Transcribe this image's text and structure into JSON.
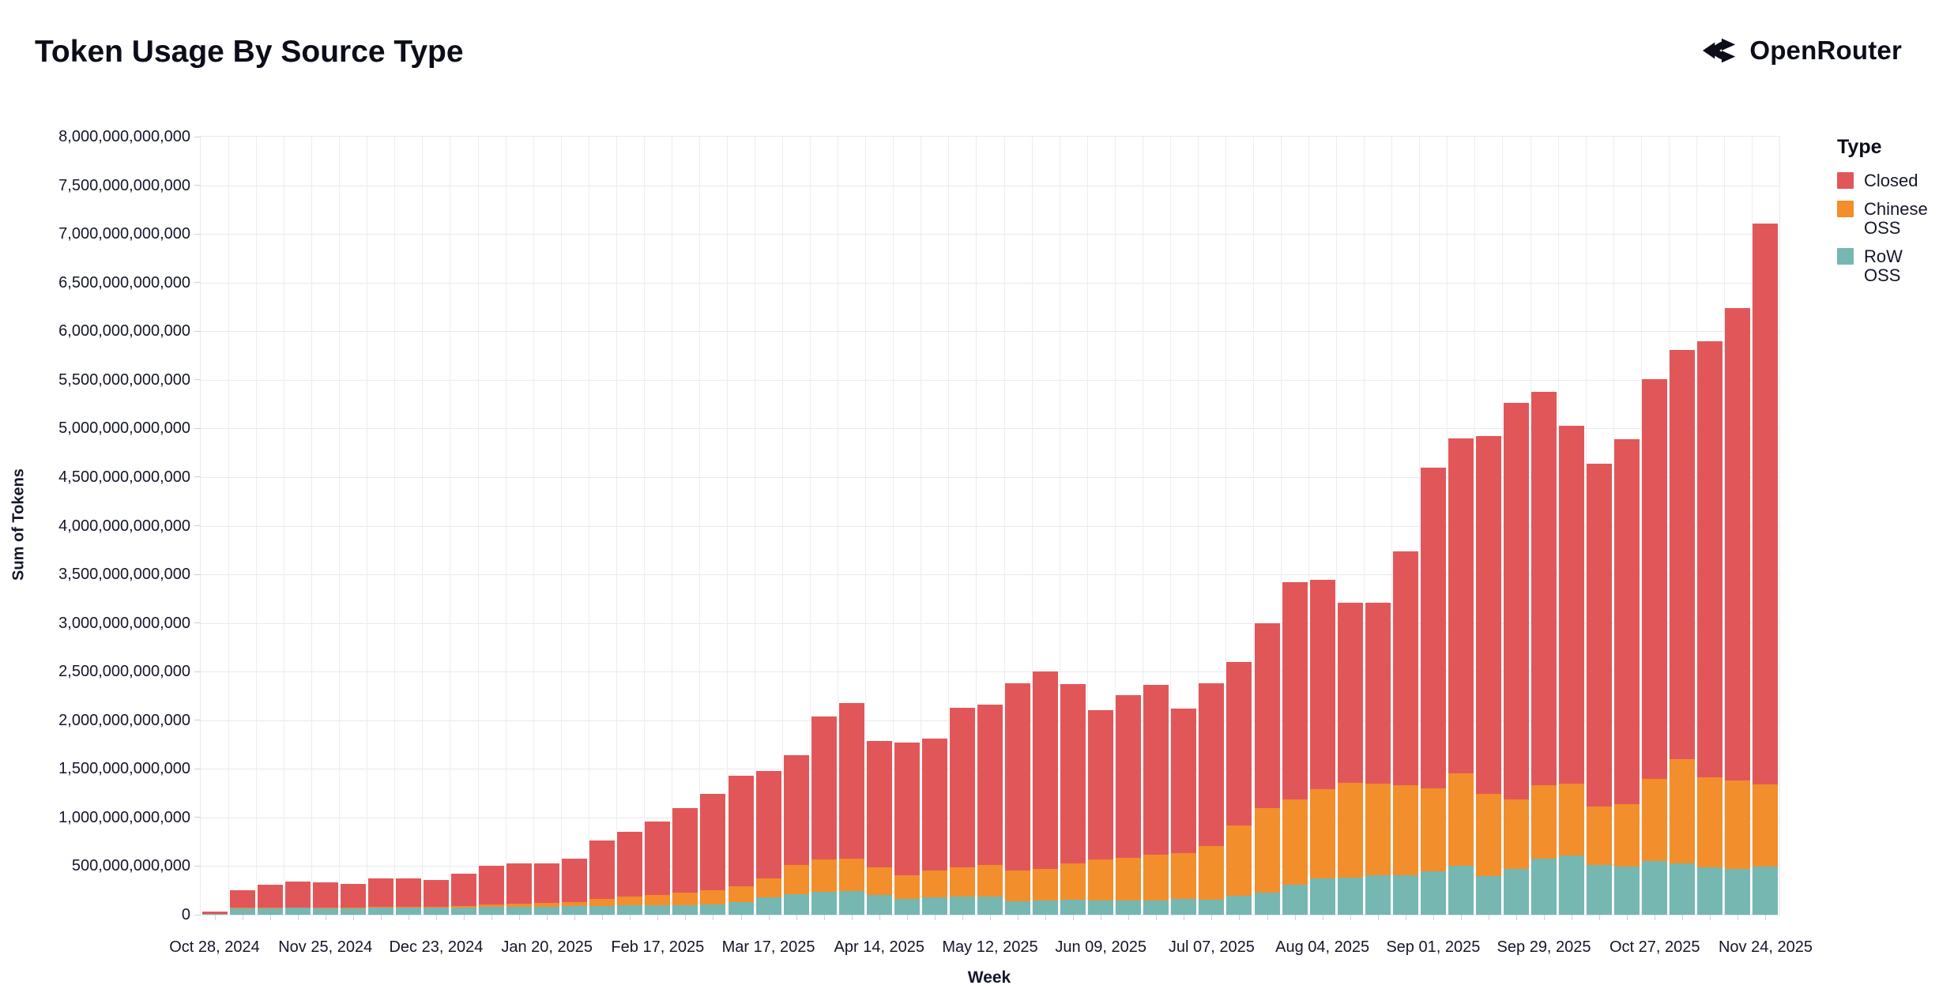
{
  "header": {
    "title": "Token Usage By Source Type",
    "brand": "OpenRouter"
  },
  "legend": {
    "title": "Type",
    "items": [
      {
        "label": "Closed",
        "color": "#e15759"
      },
      {
        "label": "Chinese OSS",
        "color": "#f28e2b"
      },
      {
        "label": "RoW OSS",
        "color": "#76b7b2"
      }
    ]
  },
  "axes": {
    "y_label": "Sum of Tokens",
    "x_label": "Week",
    "y_ticks": [
      "8,000,000,000,000",
      "7,500,000,000,000",
      "7,000,000,000,000",
      "6,500,000,000,000",
      "6,000,000,000,000",
      "5,500,000,000,000",
      "5,000,000,000,000",
      "4,500,000,000,000",
      "4,000,000,000,000",
      "3,500,000,000,000",
      "3,000,000,000,000",
      "2,500,000,000,000",
      "2,000,000,000,000",
      "1,500,000,000,000",
      "1,000,000,000,000",
      "500,000,000,000",
      "0"
    ],
    "x_ticks": [
      "Oct 28, 2024",
      "Nov 25, 2024",
      "Dec 23, 2024",
      "Jan 20, 2025",
      "Feb 17, 2025",
      "Mar 17, 2025",
      "Apr 14, 2025",
      "May 12, 2025",
      "Jun 09, 2025",
      "Jul 07, 2025",
      "Aug 04, 2025",
      "Sep 01, 2025",
      "Sep 29, 2025",
      "Oct 27, 2025",
      "Nov 24, 2025"
    ]
  },
  "chart_data": {
    "type": "bar",
    "stacked": true,
    "title": "Token Usage By Source Type",
    "xlabel": "Week",
    "ylabel": "Sum of Tokens",
    "unit": "tokens, values in billions (1 = 1,000,000,000 tokens)",
    "ylim_billions": [
      0,
      8000
    ],
    "y_tick_step_billions": 500,
    "grid": true,
    "legend_position": "right",
    "categories": [
      "Oct 28, 2024",
      "Nov 04, 2024",
      "Nov 11, 2024",
      "Nov 18, 2024",
      "Nov 25, 2024",
      "Dec 02, 2024",
      "Dec 09, 2024",
      "Dec 16, 2024",
      "Dec 23, 2024",
      "Dec 30, 2024",
      "Jan 06, 2025",
      "Jan 13, 2025",
      "Jan 20, 2025",
      "Jan 27, 2025",
      "Feb 03, 2025",
      "Feb 10, 2025",
      "Feb 17, 2025",
      "Feb 24, 2025",
      "Mar 03, 2025",
      "Mar 10, 2025",
      "Mar 17, 2025",
      "Mar 24, 2025",
      "Mar 31, 2025",
      "Apr 07, 2025",
      "Apr 14, 2025",
      "Apr 21, 2025",
      "Apr 28, 2025",
      "May 05, 2025",
      "May 12, 2025",
      "May 19, 2025",
      "May 26, 2025",
      "Jun 02, 2025",
      "Jun 09, 2025",
      "Jun 16, 2025",
      "Jun 23, 2025",
      "Jun 30, 2025",
      "Jul 07, 2025",
      "Jul 14, 2025",
      "Jul 21, 2025",
      "Jul 28, 2025",
      "Aug 04, 2025",
      "Aug 11, 2025",
      "Aug 18, 2025",
      "Aug 25, 2025",
      "Sep 01, 2025",
      "Sep 08, 2025",
      "Sep 15, 2025",
      "Sep 22, 2025",
      "Sep 29, 2025",
      "Oct 06, 2025",
      "Oct 13, 2025",
      "Oct 20, 2025",
      "Oct 27, 2025",
      "Nov 03, 2025",
      "Nov 10, 2025",
      "Nov 17, 2025",
      "Nov 24, 2025"
    ],
    "series": [
      {
        "name": "Closed",
        "color": "#e15759",
        "values": [
          20,
          180,
          236,
          268,
          255,
          242,
          291,
          288,
          275,
          330,
          395,
          415,
          405,
          447,
          600,
          665,
          755,
          875,
          985,
          1135,
          1110,
          1130,
          1475,
          1605,
          1305,
          1360,
          1355,
          1640,
          1645,
          1925,
          2030,
          1840,
          1530,
          1675,
          1745,
          1490,
          1670,
          1680,
          1905,
          2230,
          2150,
          1850,
          1865,
          2410,
          3300,
          3450,
          3680,
          4070,
          4050,
          3685,
          3530,
          3750,
          4110,
          4210,
          4490,
          4860,
          5770
        ]
      },
      {
        "name": "Chinese OSS",
        "color": "#f28e2b",
        "values": [
          2,
          5,
          6,
          7,
          7,
          8,
          9,
          10,
          10,
          15,
          25,
          30,
          35,
          45,
          70,
          90,
          110,
          125,
          150,
          165,
          195,
          300,
          330,
          335,
          280,
          250,
          275,
          300,
          325,
          320,
          325,
          375,
          420,
          435,
          470,
          465,
          555,
          725,
          870,
          880,
          915,
          975,
          935,
          920,
          855,
          945,
          845,
          720,
          755,
          735,
          600,
          645,
          850,
          1070,
          925,
          910,
          845
        ]
      },
      {
        "name": "RoW OSS",
        "color": "#76b7b2",
        "values": [
          8,
          65,
          68,
          70,
          68,
          65,
          70,
          72,
          70,
          75,
          80,
          85,
          85,
          88,
          90,
          95,
          95,
          100,
          105,
          130,
          175,
          210,
          235,
          240,
          205,
          160,
          180,
          190,
          190,
          135,
          145,
          155,
          150,
          150,
          145,
          165,
          155,
          195,
          225,
          310,
          375,
          385,
          410,
          410,
          445,
          505,
          395,
          470,
          575,
          610,
          510,
          495,
          550,
          530,
          485,
          470,
          495
        ]
      }
    ]
  }
}
